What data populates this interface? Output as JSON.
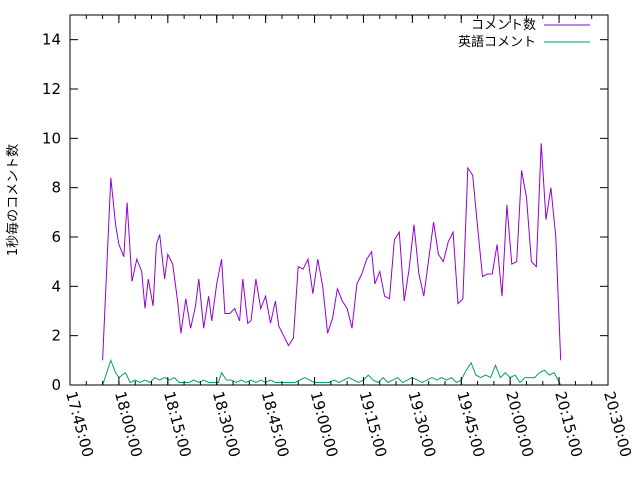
{
  "chart_data": {
    "type": "line",
    "title": "",
    "xlabel": "",
    "ylabel": "1秒毎のコメント数",
    "x_unit": "HH:MM:SS",
    "xlim": [
      "17:45:00",
      "20:30:00"
    ],
    "ylim": [
      0,
      15
    ],
    "x_ticks": [
      "17:45:00",
      "18:00:00",
      "18:15:00",
      "18:30:00",
      "18:45:00",
      "19:00:00",
      "19:15:00",
      "19:30:00",
      "19:45:00",
      "20:00:00",
      "20:15:00",
      "20:30:00"
    ],
    "y_ticks": [
      0,
      2,
      4,
      6,
      8,
      10,
      12,
      14
    ],
    "grid": false,
    "legend_position": "top-right",
    "series": [
      {
        "name": "コメント数",
        "color": "#9400d3",
        "points": [
          [
            "17:55:00",
            1.0
          ],
          [
            "17:57:30",
            8.4
          ],
          [
            "17:59:00",
            6.5
          ],
          [
            "18:00:00",
            5.7
          ],
          [
            "18:01:30",
            5.2
          ],
          [
            "18:02:30",
            7.4
          ],
          [
            "18:04:00",
            4.2
          ],
          [
            "18:05:30",
            5.1
          ],
          [
            "18:07:00",
            4.6
          ],
          [
            "18:08:00",
            3.1
          ],
          [
            "18:09:00",
            4.3
          ],
          [
            "18:10:30",
            3.2
          ],
          [
            "18:11:30",
            5.7
          ],
          [
            "18:12:30",
            6.1
          ],
          [
            "18:14:00",
            4.3
          ],
          [
            "18:15:00",
            5.3
          ],
          [
            "18:16:30",
            4.9
          ],
          [
            "18:18:00",
            3.4
          ],
          [
            "18:19:00",
            2.1
          ],
          [
            "18:20:30",
            3.5
          ],
          [
            "18:22:00",
            2.3
          ],
          [
            "18:23:30",
            3.2
          ],
          [
            "18:24:30",
            4.3
          ],
          [
            "18:26:00",
            2.3
          ],
          [
            "18:27:30",
            3.6
          ],
          [
            "18:28:30",
            2.6
          ],
          [
            "18:30:00",
            4.1
          ],
          [
            "18:31:30",
            5.1
          ],
          [
            "18:32:30",
            2.9
          ],
          [
            "18:34:00",
            2.9
          ],
          [
            "18:35:30",
            3.1
          ],
          [
            "18:37:00",
            2.6
          ],
          [
            "18:38:00",
            4.3
          ],
          [
            "18:39:30",
            2.5
          ],
          [
            "18:40:30",
            2.6
          ],
          [
            "18:42:00",
            4.3
          ],
          [
            "18:43:30",
            3.1
          ],
          [
            "18:45:00",
            3.6
          ],
          [
            "18:46:30",
            2.5
          ],
          [
            "18:48:00",
            3.4
          ],
          [
            "18:49:00",
            2.4
          ],
          [
            "18:50:30",
            2.0
          ],
          [
            "18:52:00",
            1.6
          ],
          [
            "18:53:30",
            1.9
          ],
          [
            "18:55:00",
            4.8
          ],
          [
            "18:56:30",
            4.7
          ],
          [
            "18:58:00",
            5.1
          ],
          [
            "18:59:30",
            3.7
          ],
          [
            "19:01:00",
            5.1
          ],
          [
            "19:02:30",
            4.0
          ],
          [
            "19:04:00",
            2.1
          ],
          [
            "19:05:30",
            2.7
          ],
          [
            "19:07:00",
            3.9
          ],
          [
            "19:08:30",
            3.4
          ],
          [
            "19:10:00",
            3.1
          ],
          [
            "19:11:30",
            2.3
          ],
          [
            "19:13:00",
            4.1
          ],
          [
            "19:14:30",
            4.5
          ],
          [
            "19:16:00",
            5.1
          ],
          [
            "19:17:30",
            5.4
          ],
          [
            "19:18:30",
            4.1
          ],
          [
            "19:20:00",
            4.6
          ],
          [
            "19:21:30",
            3.6
          ],
          [
            "19:23:00",
            3.5
          ],
          [
            "19:24:30",
            5.9
          ],
          [
            "19:26:00",
            6.2
          ],
          [
            "19:27:30",
            3.4
          ],
          [
            "19:29:00",
            4.7
          ],
          [
            "19:30:30",
            6.5
          ],
          [
            "19:32:00",
            4.5
          ],
          [
            "19:33:30",
            3.6
          ],
          [
            "19:35:00",
            5.1
          ],
          [
            "19:36:30",
            6.6
          ],
          [
            "19:38:00",
            5.3
          ],
          [
            "19:39:30",
            5.0
          ],
          [
            "19:41:00",
            5.8
          ],
          [
            "19:42:30",
            6.2
          ],
          [
            "19:44:00",
            3.3
          ],
          [
            "19:45:30",
            3.5
          ],
          [
            "19:47:00",
            8.8
          ],
          [
            "19:48:30",
            8.5
          ],
          [
            "19:50:00",
            6.4
          ],
          [
            "19:51:30",
            4.4
          ],
          [
            "19:53:00",
            4.5
          ],
          [
            "19:54:30",
            4.5
          ],
          [
            "19:56:00",
            5.7
          ],
          [
            "19:57:30",
            3.6
          ],
          [
            "19:59:00",
            7.3
          ],
          [
            "20:00:30",
            4.9
          ],
          [
            "20:02:00",
            5.0
          ],
          [
            "20:03:30",
            8.7
          ],
          [
            "20:05:00",
            7.6
          ],
          [
            "20:06:30",
            5.0
          ],
          [
            "20:08:00",
            4.8
          ],
          [
            "20:09:30",
            9.8
          ],
          [
            "20:11:00",
            6.7
          ],
          [
            "20:12:30",
            8.0
          ],
          [
            "20:14:00",
            6.0
          ],
          [
            "20:15:30",
            1.0
          ]
        ]
      },
      {
        "name": "英語コメント",
        "color": "#009e73",
        "points": [
          [
            "17:55:00",
            0.0
          ],
          [
            "17:57:30",
            1.0
          ],
          [
            "17:59:00",
            0.5
          ],
          [
            "18:00:00",
            0.3
          ],
          [
            "18:02:00",
            0.5
          ],
          [
            "18:03:30",
            0.1
          ],
          [
            "18:05:00",
            0.2
          ],
          [
            "18:06:30",
            0.1
          ],
          [
            "18:08:00",
            0.2
          ],
          [
            "18:09:30",
            0.1
          ],
          [
            "18:11:00",
            0.3
          ],
          [
            "18:12:30",
            0.2
          ],
          [
            "18:14:00",
            0.3
          ],
          [
            "18:15:30",
            0.2
          ],
          [
            "18:17:00",
            0.3
          ],
          [
            "18:18:30",
            0.1
          ],
          [
            "18:20:00",
            0.1
          ],
          [
            "18:21:30",
            0.1
          ],
          [
            "18:23:00",
            0.2
          ],
          [
            "18:24:30",
            0.1
          ],
          [
            "18:26:00",
            0.2
          ],
          [
            "18:27:30",
            0.1
          ],
          [
            "18:29:00",
            0.1
          ],
          [
            "18:30:30",
            0.1
          ],
          [
            "18:31:30",
            0.5
          ],
          [
            "18:33:00",
            0.2
          ],
          [
            "18:34:30",
            0.2
          ],
          [
            "18:36:00",
            0.1
          ],
          [
            "18:37:30",
            0.2
          ],
          [
            "18:39:00",
            0.1
          ],
          [
            "18:40:30",
            0.2
          ],
          [
            "18:42:00",
            0.1
          ],
          [
            "18:43:30",
            0.2
          ],
          [
            "18:45:00",
            0.1
          ],
          [
            "18:46:30",
            0.2
          ],
          [
            "18:48:00",
            0.1
          ],
          [
            "18:49:30",
            0.1
          ],
          [
            "18:51:00",
            0.1
          ],
          [
            "18:52:30",
            0.1
          ],
          [
            "18:54:00",
            0.1
          ],
          [
            "18:55:30",
            0.2
          ],
          [
            "18:57:00",
            0.3
          ],
          [
            "18:58:30",
            0.2
          ],
          [
            "19:00:00",
            0.1
          ],
          [
            "19:01:30",
            0.1
          ],
          [
            "19:03:00",
            0.1
          ],
          [
            "19:04:30",
            0.1
          ],
          [
            "19:06:00",
            0.2
          ],
          [
            "19:07:30",
            0.1
          ],
          [
            "19:09:00",
            0.2
          ],
          [
            "19:10:30",
            0.3
          ],
          [
            "19:12:00",
            0.2
          ],
          [
            "19:13:30",
            0.1
          ],
          [
            "19:15:00",
            0.2
          ],
          [
            "19:16:30",
            0.4
          ],
          [
            "19:18:00",
            0.2
          ],
          [
            "19:19:30",
            0.1
          ],
          [
            "19:21:00",
            0.3
          ],
          [
            "19:22:30",
            0.1
          ],
          [
            "19:24:00",
            0.2
          ],
          [
            "19:25:30",
            0.3
          ],
          [
            "19:27:00",
            0.1
          ],
          [
            "19:28:30",
            0.2
          ],
          [
            "19:30:00",
            0.3
          ],
          [
            "19:31:30",
            0.2
          ],
          [
            "19:33:00",
            0.1
          ],
          [
            "19:34:30",
            0.2
          ],
          [
            "19:36:00",
            0.3
          ],
          [
            "19:37:30",
            0.2
          ],
          [
            "19:39:00",
            0.3
          ],
          [
            "19:40:30",
            0.2
          ],
          [
            "19:42:00",
            0.3
          ],
          [
            "19:43:30",
            0.1
          ],
          [
            "19:45:00",
            0.2
          ],
          [
            "19:46:30",
            0.6
          ],
          [
            "19:48:00",
            0.9
          ],
          [
            "19:49:30",
            0.4
          ],
          [
            "19:51:00",
            0.3
          ],
          [
            "19:52:30",
            0.4
          ],
          [
            "19:54:00",
            0.3
          ],
          [
            "19:55:30",
            0.8
          ],
          [
            "19:57:00",
            0.3
          ],
          [
            "19:58:30",
            0.5
          ],
          [
            "20:00:00",
            0.3
          ],
          [
            "20:01:30",
            0.4
          ],
          [
            "20:03:00",
            0.1
          ],
          [
            "20:04:30",
            0.3
          ],
          [
            "20:06:00",
            0.3
          ],
          [
            "20:07:30",
            0.3
          ],
          [
            "20:09:00",
            0.5
          ],
          [
            "20:10:30",
            0.6
          ],
          [
            "20:12:00",
            0.4
          ],
          [
            "20:13:30",
            0.5
          ],
          [
            "20:15:30",
            0.0
          ]
        ]
      }
    ]
  }
}
